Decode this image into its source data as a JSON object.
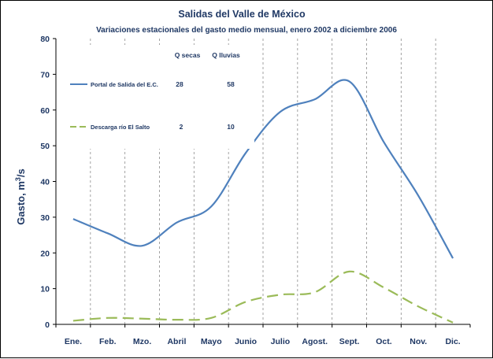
{
  "chart_data": {
    "type": "line",
    "title": "Salidas del Valle de México",
    "subtitle": "Variaciones estacionales del gasto medio mensual, enero 2002 a diciembre 2006",
    "ylabel_main": "Gasto, m",
    "ylabel_sup": "3",
    "ylabel_end": "/s",
    "xlabel": "",
    "categories": [
      "Ene.",
      "Feb.",
      "Mzo.",
      "Abril",
      "Mayo",
      "Junio",
      "Julio",
      "Agost.",
      "Sept.",
      "Oct.",
      "Nov.",
      "Dic."
    ],
    "ylim": [
      0,
      80
    ],
    "yticks": [
      "0",
      "10",
      "20",
      "30",
      "40",
      "50",
      "60",
      "70",
      "80"
    ],
    "grid": "vertical dashed",
    "legend_position": "top-left",
    "legend_headers": [
      "Q secas",
      "Q lluvias"
    ],
    "series": [
      {
        "name": "Portal de Salida del E.C.",
        "color": "#4f81bd",
        "style": "solid",
        "q_secas": "28",
        "q_lluvias": "58",
        "values": [
          29.5,
          25.5,
          22,
          28.5,
          33,
          48,
          59.5,
          63,
          68,
          51,
          36,
          18.5
        ]
      },
      {
        "name": "Descarga río El Salto",
        "color": "#9bbb59",
        "style": "dashed",
        "q_secas": "2",
        "q_lluvias": "10",
        "values": [
          1,
          1.8,
          1.6,
          1.3,
          1.8,
          6.3,
          8.3,
          9,
          14.8,
          10.3,
          5,
          0.5
        ]
      }
    ]
  }
}
